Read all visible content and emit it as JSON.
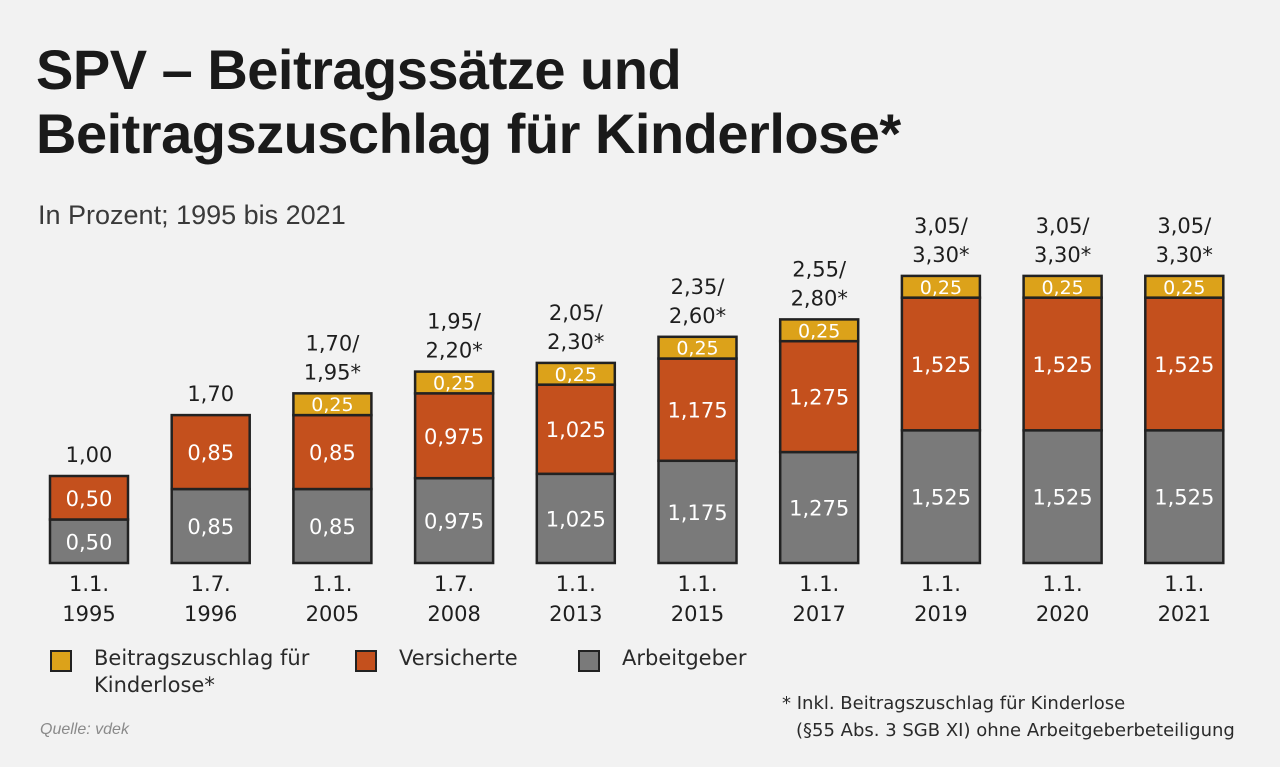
{
  "title_line1": "SPV – Beitragssätze und",
  "title_line2": "Beitragszuschlag für Kinderlose*",
  "subtitle": "In Prozent; 1995 bis 2021",
  "colors": {
    "arbeitgeber": "#7a7a7a",
    "versicherte": "#c4501d",
    "zuschlag": "#dca21a",
    "outline": "#222222"
  },
  "legend": {
    "zuschlag": "Beitragszuschlag für Kinderlose*",
    "versicherte": "Versicherte",
    "arbeitgeber": "Arbeitgeber"
  },
  "footnote_line1": "* Inkl. Beitragszuschlag für Kinderlose",
  "footnote_line2": "(§55 Abs. 3 SGB XI) ohne Arbeitgeberbeteiligung",
  "source": "Quelle: vdek",
  "chart_data": {
    "type": "bar",
    "stacked": true,
    "title": "SPV – Beitragssätze und Beitragszuschlag für Kinderlose*",
    "subtitle": "In Prozent; 1995 bis 2021",
    "categories": [
      [
        "1.1.",
        "1995"
      ],
      [
        "1.7.",
        "1996"
      ],
      [
        "1.1.",
        "2005"
      ],
      [
        "1.7.",
        "2008"
      ],
      [
        "1.1.",
        "2013"
      ],
      [
        "1.1.",
        "2015"
      ],
      [
        "1.1.",
        "2017"
      ],
      [
        "1.1.",
        "2019"
      ],
      [
        "1.1.",
        "2020"
      ],
      [
        "1.1.",
        "2021"
      ]
    ],
    "series": [
      {
        "name": "Arbeitgeber",
        "values": [
          0.5,
          0.85,
          0.85,
          0.975,
          1.025,
          1.175,
          1.275,
          1.525,
          1.525,
          1.525
        ],
        "labels": [
          "0,50",
          "0,85",
          "0,85",
          "0,975",
          "1,025",
          "1,175",
          "1,275",
          "1,525",
          "1,525",
          "1,525"
        ]
      },
      {
        "name": "Versicherte",
        "values": [
          0.5,
          0.85,
          0.85,
          0.975,
          1.025,
          1.175,
          1.275,
          1.525,
          1.525,
          1.525
        ],
        "labels": [
          "0,50",
          "0,85",
          "0,85",
          "0,975",
          "1,025",
          "1,175",
          "1,275",
          "1,525",
          "1,525",
          "1,525"
        ]
      },
      {
        "name": "Beitragszuschlag für Kinderlose*",
        "values": [
          0,
          0,
          0.25,
          0.25,
          0.25,
          0.25,
          0.25,
          0.25,
          0.25,
          0.25
        ],
        "labels": [
          "",
          "",
          "0,25",
          "0,25",
          "0,25",
          "0,25",
          "0,25",
          "0,25",
          "0,25",
          "0,25"
        ]
      }
    ],
    "totals": [
      [
        "1,00"
      ],
      [
        "1,70"
      ],
      [
        "1,70/",
        "1,95*"
      ],
      [
        "1,95/",
        "2,20*"
      ],
      [
        "2,05/",
        "2,30*"
      ],
      [
        "2,35/",
        "2,60*"
      ],
      [
        "2,55/",
        "2,80*"
      ],
      [
        "3,05/",
        "3,30*"
      ],
      [
        "3,05/",
        "3,30*"
      ],
      [
        "3,05/",
        "3,30*"
      ]
    ],
    "ylim": [
      0,
      3.3
    ],
    "grid": false,
    "legend_position": "bottom"
  }
}
